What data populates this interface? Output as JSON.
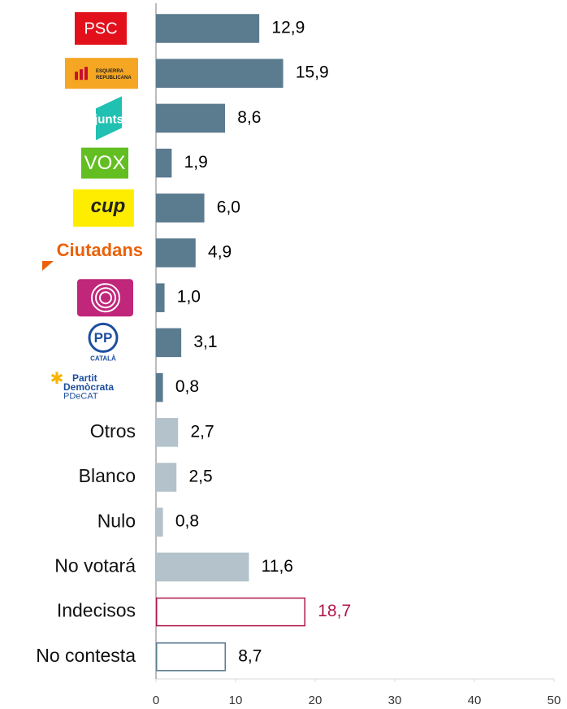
{
  "chart_data": {
    "type": "barh",
    "categories": [
      "PSC",
      [
        "ESQUERRA",
        "REPUBLICANA"
      ],
      "junts",
      "VOX",
      "cup",
      "Ciutadans",
      null,
      [
        "PP",
        "CATALÀ"
      ],
      [
        "Partit",
        "Demòcrata",
        "PDeCAT"
      ],
      "Otros",
      "Blanco",
      "Nulo",
      "No votará",
      "Indecisos",
      "No contesta"
    ],
    "values": [
      12.9,
      15.9,
      8.6,
      1.9,
      6.0,
      4.9,
      1.0,
      3.1,
      0.8,
      2.7,
      2.5,
      0.8,
      11.6,
      18.7,
      8.7
    ],
    "value_labels": [
      "12,9",
      "15,9",
      "8,6",
      "1,9",
      "6,0",
      "4,9",
      "1,0",
      "3,1",
      "0,8",
      "2,7",
      "2,5",
      "0,8",
      "11,6",
      "18,7",
      "8,7"
    ],
    "colors": [
      "#5b7b8f",
      "#5b7b8f",
      "#5b7b8f",
      "#5b7b8f",
      "#5b7b8f",
      "#5b7b8f",
      "#5b7b8f",
      "#5b7b8f",
      "#5b7b8f",
      "#b3c2cb",
      "#b3c2cb",
      "#b3c2cb",
      "#b3c2cb",
      "#ffffff",
      "#ffffff"
    ],
    "edge_colors": [
      "#5b7b8f",
      "#5b7b8f",
      "#5b7b8f",
      "#5b7b8f",
      "#5b7b8f",
      "#5b7b8f",
      "#5b7b8f",
      "#5b7b8f",
      "#5b7b8f",
      "#b3c2cb",
      "#b3c2cb",
      "#b3c2cb",
      "#b3c2cb",
      "#b0164b",
      "#5b7b8f"
    ],
    "label_colors": [
      "#000000",
      "#000000",
      "#000000",
      "#000000",
      "#000000",
      "#000000",
      "#000000",
      "#000000",
      "#000000",
      "#000000",
      "#000000",
      "#000000",
      "#000000",
      "#b0164b",
      "#000000"
    ],
    "xlim": [
      0,
      50
    ],
    "xticks": [
      0,
      10,
      20,
      30,
      40,
      50
    ]
  }
}
